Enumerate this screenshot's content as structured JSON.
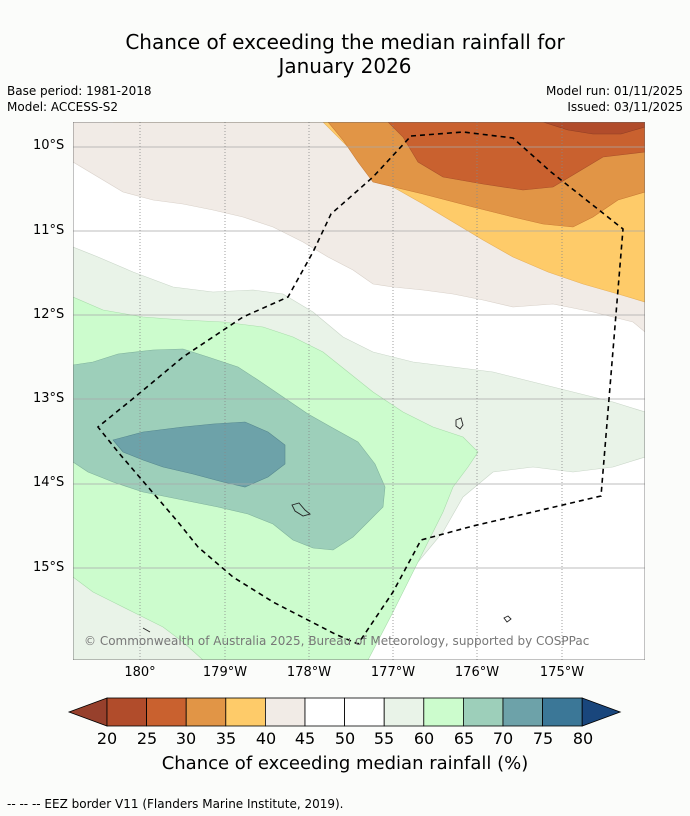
{
  "title": {
    "line1": "Chance of exceeding the median rainfall for",
    "line2": "January 2026"
  },
  "meta": {
    "base_period": "Base period: 1981-2018",
    "model": "Model: ACCESS-S2",
    "model_run": "Model run: 01/11/2025",
    "issued": "Issued: 03/11/2025"
  },
  "axes": {
    "latitudes": [
      "10°S",
      "11°S",
      "12°S",
      "13°S",
      "14°S",
      "15°S"
    ],
    "longitudes": [
      "180°",
      "179°W",
      "178°W",
      "177°W",
      "176°W",
      "175°W"
    ]
  },
  "copyright": "© Commonwealth of Australia 2025, Bureau of Meteorology, supported by COSPPac",
  "colorbar": {
    "title": "Chance of exceeding median rainfall (%)",
    "ticks": [
      "20",
      "25",
      "30",
      "35",
      "40",
      "45",
      "50",
      "55",
      "60",
      "65",
      "70",
      "75",
      "80"
    ],
    "colors": [
      "#b14c2b",
      "#c9612f",
      "#e19546",
      "#fecb69",
      "#f1ebe6",
      "#ffffff",
      "#ffffff",
      "#e9f3e8",
      "#ccfccd",
      "#9dcfba",
      "#6da2a9",
      "#3b7797"
    ],
    "under_color": "#97402c",
    "over_color": "#19467c"
  },
  "footnote": "--  --  -- EEZ border V11 (Flanders Marine Institute, 2019)."
}
